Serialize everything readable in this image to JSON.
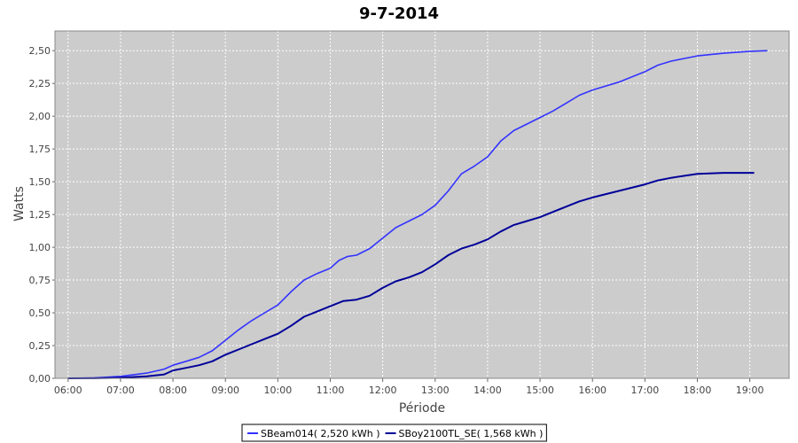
{
  "chart_data": {
    "type": "line",
    "title": "9-7-2014",
    "xlabel": "Période",
    "ylabel": "Watts",
    "x_ticks": [
      "06:00",
      "07:00",
      "08:00",
      "09:00",
      "10:00",
      "11:00",
      "12:00",
      "13:00",
      "14:00",
      "15:00",
      "16:00",
      "17:00",
      "18:00",
      "19:00"
    ],
    "y_ticks": [
      "0,00",
      "0,25",
      "0,50",
      "0,75",
      "1,00",
      "1,25",
      "1,50",
      "1,75",
      "2,00",
      "2,25",
      "2,50"
    ],
    "xlim": [
      "05:45",
      "19:45"
    ],
    "ylim": [
      0,
      2.65
    ],
    "grid": true,
    "legend_position": "bottom",
    "background_color": "#cccccc",
    "series": [
      {
        "name": "SBeam014( 2,520 kWh )",
        "color": "#3333ff",
        "points": [
          [
            "06:00",
            0
          ],
          [
            "06:30",
            0.003
          ],
          [
            "07:00",
            0.015
          ],
          [
            "07:30",
            0.04
          ],
          [
            "07:50",
            0.07
          ],
          [
            "08:00",
            0.1
          ],
          [
            "08:15",
            0.13
          ],
          [
            "08:30",
            0.16
          ],
          [
            "08:45",
            0.21
          ],
          [
            "09:00",
            0.29
          ],
          [
            "09:15",
            0.37
          ],
          [
            "09:30",
            0.44
          ],
          [
            "09:45",
            0.5
          ],
          [
            "10:00",
            0.56
          ],
          [
            "10:15",
            0.66
          ],
          [
            "10:30",
            0.75
          ],
          [
            "10:45",
            0.8
          ],
          [
            "11:00",
            0.84
          ],
          [
            "11:10",
            0.9
          ],
          [
            "11:20",
            0.93
          ],
          [
            "11:30",
            0.94
          ],
          [
            "11:45",
            0.99
          ],
          [
            "12:00",
            1.07
          ],
          [
            "12:15",
            1.15
          ],
          [
            "12:30",
            1.2
          ],
          [
            "12:45",
            1.25
          ],
          [
            "13:00",
            1.32
          ],
          [
            "13:15",
            1.43
          ],
          [
            "13:30",
            1.56
          ],
          [
            "13:45",
            1.62
          ],
          [
            "14:00",
            1.69
          ],
          [
            "14:15",
            1.81
          ],
          [
            "14:30",
            1.89
          ],
          [
            "14:45",
            1.94
          ],
          [
            "15:00",
            1.99
          ],
          [
            "15:15",
            2.04
          ],
          [
            "15:30",
            2.1
          ],
          [
            "15:45",
            2.16
          ],
          [
            "16:00",
            2.2
          ],
          [
            "16:30",
            2.26
          ],
          [
            "17:00",
            2.34
          ],
          [
            "17:15",
            2.39
          ],
          [
            "17:30",
            2.42
          ],
          [
            "18:00",
            2.46
          ],
          [
            "18:30",
            2.48
          ],
          [
            "19:00",
            2.495
          ],
          [
            "19:20",
            2.5
          ]
        ]
      },
      {
        "name": "SBoy2100TL_SE( 1,568 kWh )",
        "color": "#000099",
        "points": [
          [
            "06:00",
            0
          ],
          [
            "06:30",
            0.001
          ],
          [
            "07:00",
            0.005
          ],
          [
            "07:30",
            0.015
          ],
          [
            "07:50",
            0.03
          ],
          [
            "08:00",
            0.06
          ],
          [
            "08:15",
            0.08
          ],
          [
            "08:30",
            0.1
          ],
          [
            "08:45",
            0.13
          ],
          [
            "09:00",
            0.18
          ],
          [
            "09:15",
            0.22
          ],
          [
            "09:30",
            0.26
          ],
          [
            "09:45",
            0.3
          ],
          [
            "10:00",
            0.34
          ],
          [
            "10:15",
            0.4
          ],
          [
            "10:30",
            0.47
          ],
          [
            "10:45",
            0.51
          ],
          [
            "11:00",
            0.55
          ],
          [
            "11:15",
            0.59
          ],
          [
            "11:30",
            0.6
          ],
          [
            "11:45",
            0.63
          ],
          [
            "12:00",
            0.69
          ],
          [
            "12:15",
            0.74
          ],
          [
            "12:30",
            0.77
          ],
          [
            "12:45",
            0.81
          ],
          [
            "13:00",
            0.87
          ],
          [
            "13:15",
            0.94
          ],
          [
            "13:30",
            0.99
          ],
          [
            "13:45",
            1.02
          ],
          [
            "14:00",
            1.06
          ],
          [
            "14:15",
            1.12
          ],
          [
            "14:30",
            1.17
          ],
          [
            "14:45",
            1.2
          ],
          [
            "15:00",
            1.23
          ],
          [
            "15:15",
            1.27
          ],
          [
            "15:30",
            1.31
          ],
          [
            "15:45",
            1.35
          ],
          [
            "16:00",
            1.38
          ],
          [
            "16:30",
            1.43
          ],
          [
            "17:00",
            1.48
          ],
          [
            "17:15",
            1.51
          ],
          [
            "17:30",
            1.53
          ],
          [
            "18:00",
            1.56
          ],
          [
            "18:30",
            1.568
          ],
          [
            "19:00",
            1.568
          ],
          [
            "19:05",
            1.568
          ]
        ]
      }
    ]
  }
}
